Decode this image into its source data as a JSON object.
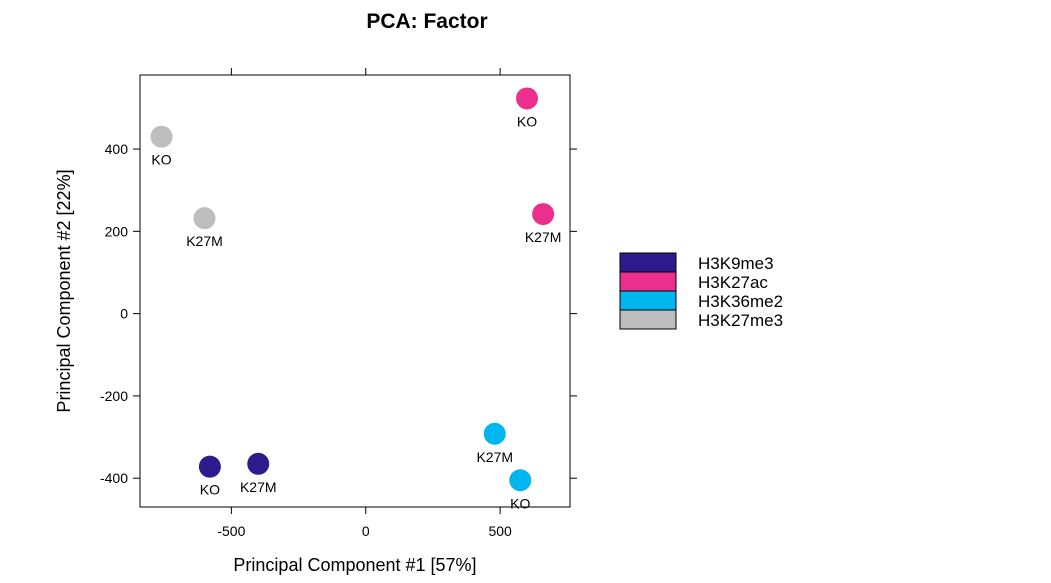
{
  "chart_data": {
    "type": "scatter",
    "title": "PCA: Factor",
    "xlabel": "Principal Component #1 [57%]",
    "ylabel": "Principal Component #2 [22%]",
    "xlim": [
      -840,
      760
    ],
    "ylim": [
      -470,
      580
    ],
    "xticks": [
      -500,
      0,
      500
    ],
    "yticks": [
      -400,
      -200,
      0,
      200,
      400
    ],
    "xtick_labels": [
      "-500",
      "0",
      "500"
    ],
    "ytick_labels": [
      "-400",
      "-200",
      "0",
      "200",
      "400"
    ],
    "grid": false,
    "legend_position": "right",
    "series": [
      {
        "name": "H3K9me3",
        "color": "#2D1B8E",
        "points": [
          {
            "x": -580,
            "y": -372,
            "label": "KO"
          },
          {
            "x": -400,
            "y": -365,
            "label": "K27M"
          }
        ]
      },
      {
        "name": "H3K27ac",
        "color": "#EC2F8C",
        "points": [
          {
            "x": 600,
            "y": 523,
            "label": "KO"
          },
          {
            "x": 660,
            "y": 242,
            "label": "K27M"
          }
        ]
      },
      {
        "name": "H3K36me2",
        "color": "#00B6EE",
        "points": [
          {
            "x": 480,
            "y": -292,
            "label": "K27M"
          },
          {
            "x": 575,
            "y": -405,
            "label": "KO"
          }
        ]
      },
      {
        "name": "H3K27me3",
        "color": "#BEBEBE",
        "points": [
          {
            "x": -760,
            "y": 430,
            "label": "KO"
          },
          {
            "x": -600,
            "y": 232,
            "label": "K27M"
          }
        ]
      }
    ]
  }
}
